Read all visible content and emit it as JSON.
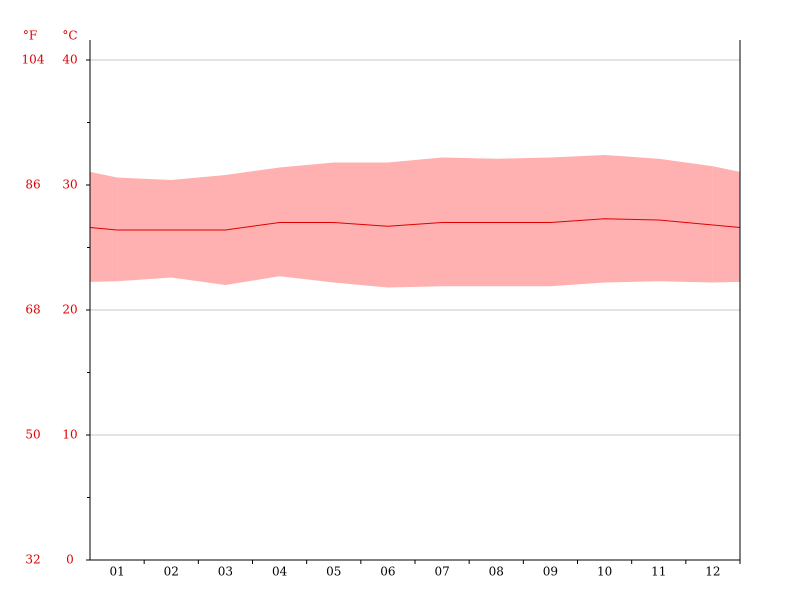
{
  "chart_data": {
    "type": "band-line",
    "y_label": "°C",
    "y2_label": "°F",
    "categories": [
      "01",
      "02",
      "03",
      "04",
      "05",
      "06",
      "07",
      "08",
      "09",
      "10",
      "11",
      "12"
    ],
    "series": [
      {
        "color": "#ffb0b0",
        "values": [
          30.6,
          30.4,
          30.8,
          31.4,
          31.8,
          31.8,
          32.2,
          32.1,
          32.2,
          32.4,
          32.1,
          31.5
        ]
      },
      {
        "color": "#ffb0b0",
        "values": [
          22.3,
          22.6,
          22.0,
          22.7,
          22.2,
          21.8,
          21.9,
          21.9,
          21.9,
          22.2,
          22.3,
          22.2
        ]
      },
      {
        "color": "#e00000",
        "values": [
          26.4,
          26.4,
          26.4,
          27.0,
          27.0,
          26.7,
          27.0,
          27.0,
          27.0,
          27.3,
          27.2,
          26.8
        ]
      }
    ],
    "ylim": [
      0,
      40
    ],
    "yticks": [
      0,
      10,
      20,
      30,
      40
    ],
    "yminor_ticks": [
      5,
      15,
      25,
      35
    ],
    "y2lim": [
      32,
      104
    ],
    "y2ticks": [
      32,
      50,
      68,
      86,
      104
    ],
    "tick_label_color": "#dd0000",
    "grid": true
  }
}
